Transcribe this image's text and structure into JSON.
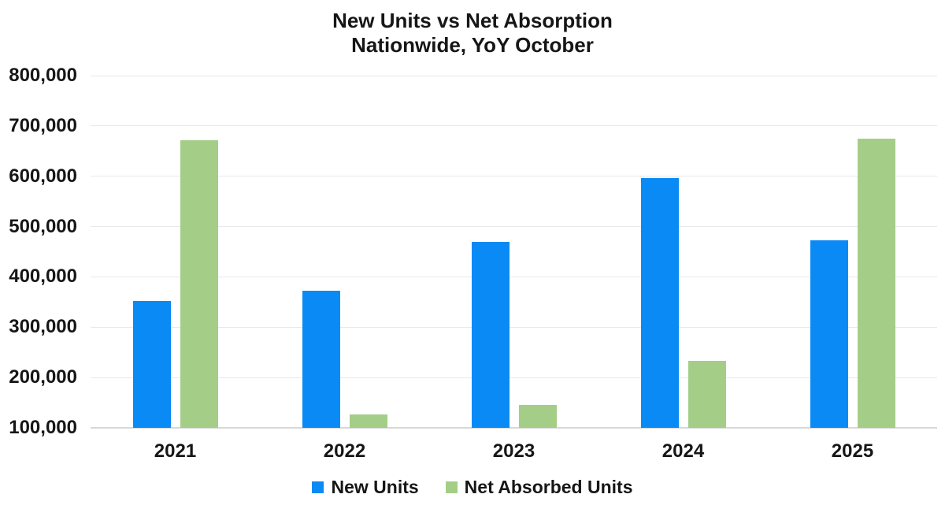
{
  "chart_data": {
    "type": "bar",
    "title": "New Units vs Net Absorption",
    "subtitle": "Nationwide, YoY October",
    "categories": [
      "2021",
      "2022",
      "2023",
      "2024",
      "2025"
    ],
    "series": [
      {
        "name": "New Units",
        "color": "#0a8af5",
        "values": [
          352000,
          372000,
          470000,
          597000,
          472000
        ]
      },
      {
        "name": "Net Absorbed Units",
        "color": "#a4ce87",
        "values": [
          672000,
          127000,
          146000,
          233000,
          674000
        ]
      }
    ],
    "ylim": [
      100000,
      800000
    ],
    "y_axis": {
      "ticks": [
        {
          "value": 800000,
          "label": "800,000"
        },
        {
          "value": 700000,
          "label": "700,000"
        },
        {
          "value": 600000,
          "label": "600,000"
        },
        {
          "value": 500000,
          "label": "500,000"
        },
        {
          "value": 400000,
          "label": "400,000"
        },
        {
          "value": 300000,
          "label": "300,000"
        },
        {
          "value": 200000,
          "label": "200,000"
        },
        {
          "value": 100000,
          "label": "100,000"
        }
      ]
    },
    "grid": true,
    "legend_position": "bottom",
    "background_color": "#ffffff",
    "text_color": "#161616",
    "gridline_color": "#e9e9e9",
    "axis_line_color": "#d8d8d8"
  }
}
